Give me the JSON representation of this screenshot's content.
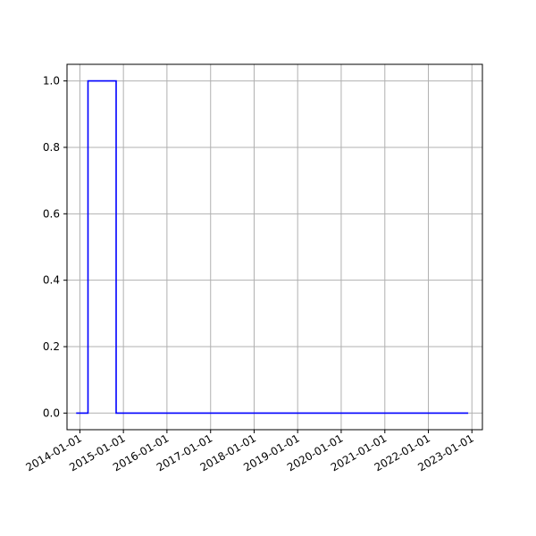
{
  "chart_data": {
    "type": "line",
    "step": true,
    "title": "",
    "xlabel": "",
    "ylabel": "",
    "grid": true,
    "line_color": "#0000ff",
    "x_axis_type": "date",
    "x_ticks": [
      "2014-01-01",
      "2015-01-01",
      "2016-01-01",
      "2017-01-01",
      "2018-01-01",
      "2019-01-01",
      "2020-01-01",
      "2021-01-01",
      "2022-01-01",
      "2023-01-01"
    ],
    "y_ticks": [
      "0.0",
      "0.2",
      "0.4",
      "0.6",
      "0.8",
      "1.0"
    ],
    "ylim": [
      -0.05,
      1.05
    ],
    "xlim": [
      "2013-09-15",
      "2023-03-30"
    ],
    "series": [
      {
        "points": [
          {
            "x": "2013-12-01",
            "y": 0
          },
          {
            "x": "2014-03-10",
            "y": 1
          },
          {
            "x": "2014-11-01",
            "y": 0
          },
          {
            "x": "2022-12-01",
            "y": 0
          }
        ]
      }
    ]
  }
}
